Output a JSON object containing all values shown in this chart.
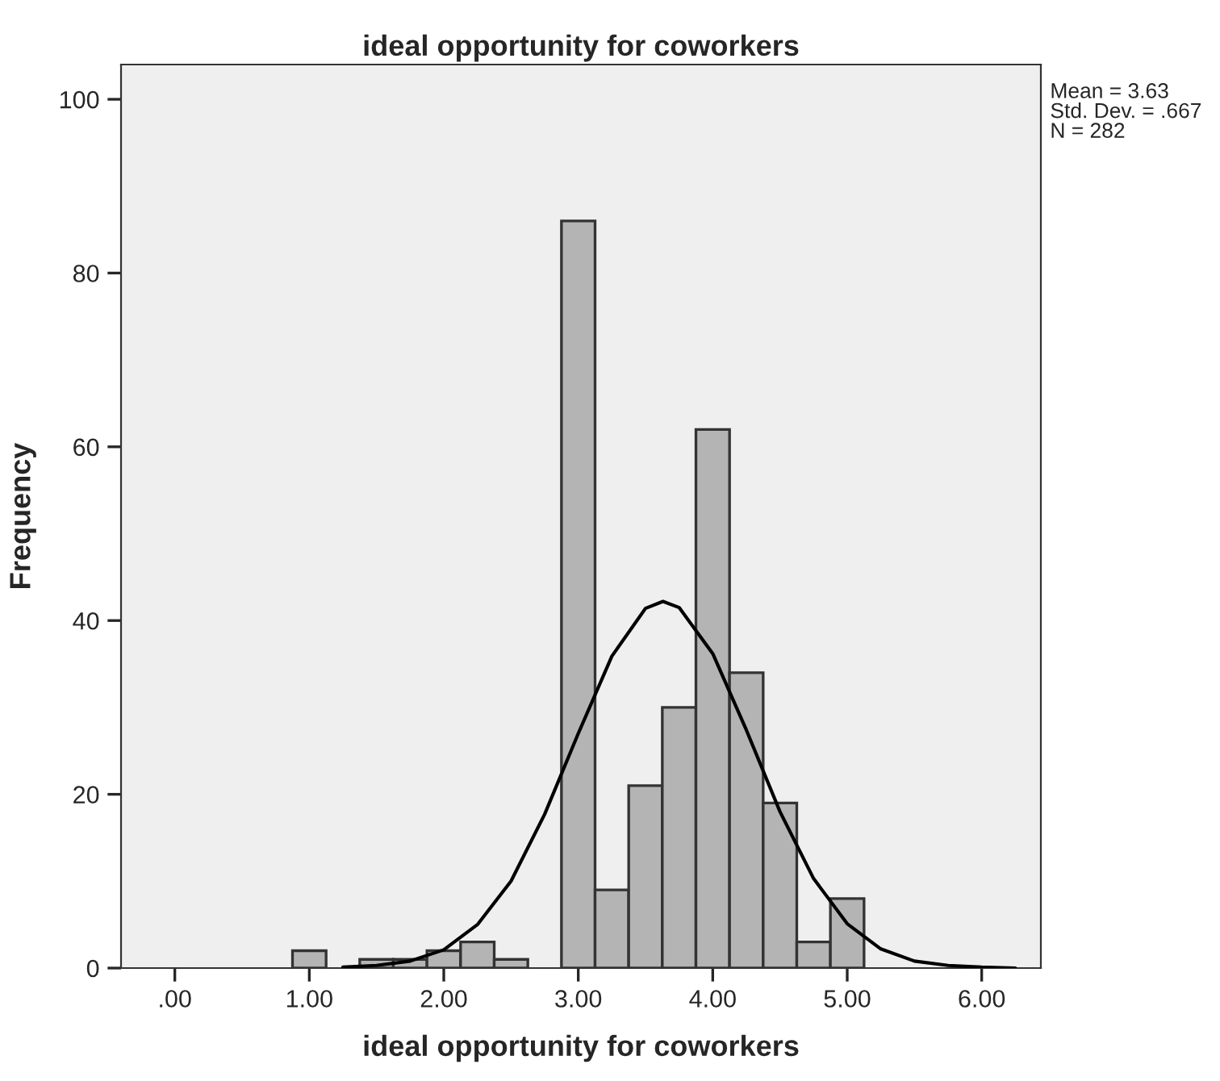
{
  "chart_data": {
    "type": "histogram",
    "title": "ideal opportunity for coworkers",
    "xlabel": "ideal opportunity for coworkers",
    "ylabel": "Frequency",
    "annotations": [
      "Mean = 3.63",
      "Std. Dev. = .667",
      "N = 282"
    ],
    "series": [
      {
        "color": "#b4b4b4",
        "bins": [
          0.875,
          1.125,
          1.375,
          1.625,
          1.875,
          2.125,
          2.375,
          2.625,
          2.875,
          3.125,
          3.375,
          3.625,
          3.875,
          4.125,
          4.375,
          4.625,
          4.875,
          5.125
        ],
        "values": [
          2,
          0,
          1,
          1,
          2,
          3,
          1,
          0,
          86,
          9,
          21,
          30,
          62,
          34,
          19,
          3,
          8
        ]
      },
      {
        "type": "line",
        "color": "#000000",
        "x": [
          1.25,
          1.5,
          1.75,
          2.0,
          2.25,
          2.5,
          2.75,
          3.0,
          3.25,
          3.5,
          3.63,
          3.75,
          4.0,
          4.25,
          4.5,
          4.75,
          5.0,
          5.25,
          5.5,
          5.75,
          6.0,
          6.25
        ],
        "values": [
          0.1,
          0.3,
          0.8,
          2.1,
          5,
          10,
          17.7,
          27,
          35.9,
          41.4,
          42.2,
          41.5,
          36.2,
          27.4,
          18,
          10.3,
          5.1,
          2.2,
          0.8,
          0.3,
          0.1,
          0
        ]
      }
    ],
    "xlim": [
      -0.4,
      6.44
    ],
    "ylim": [
      0,
      104
    ],
    "xticks": [
      {
        "value": 0,
        "label": ".00"
      },
      {
        "value": 1,
        "label": "1.00"
      },
      {
        "value": 2,
        "label": "2.00"
      },
      {
        "value": 3,
        "label": "3.00"
      },
      {
        "value": 4,
        "label": "4.00"
      },
      {
        "value": 5,
        "label": "5.00"
      },
      {
        "value": 6,
        "label": "6.00"
      }
    ],
    "yticks": [
      0,
      20,
      40,
      60,
      80,
      100
    ],
    "grid": false,
    "legend": false
  }
}
